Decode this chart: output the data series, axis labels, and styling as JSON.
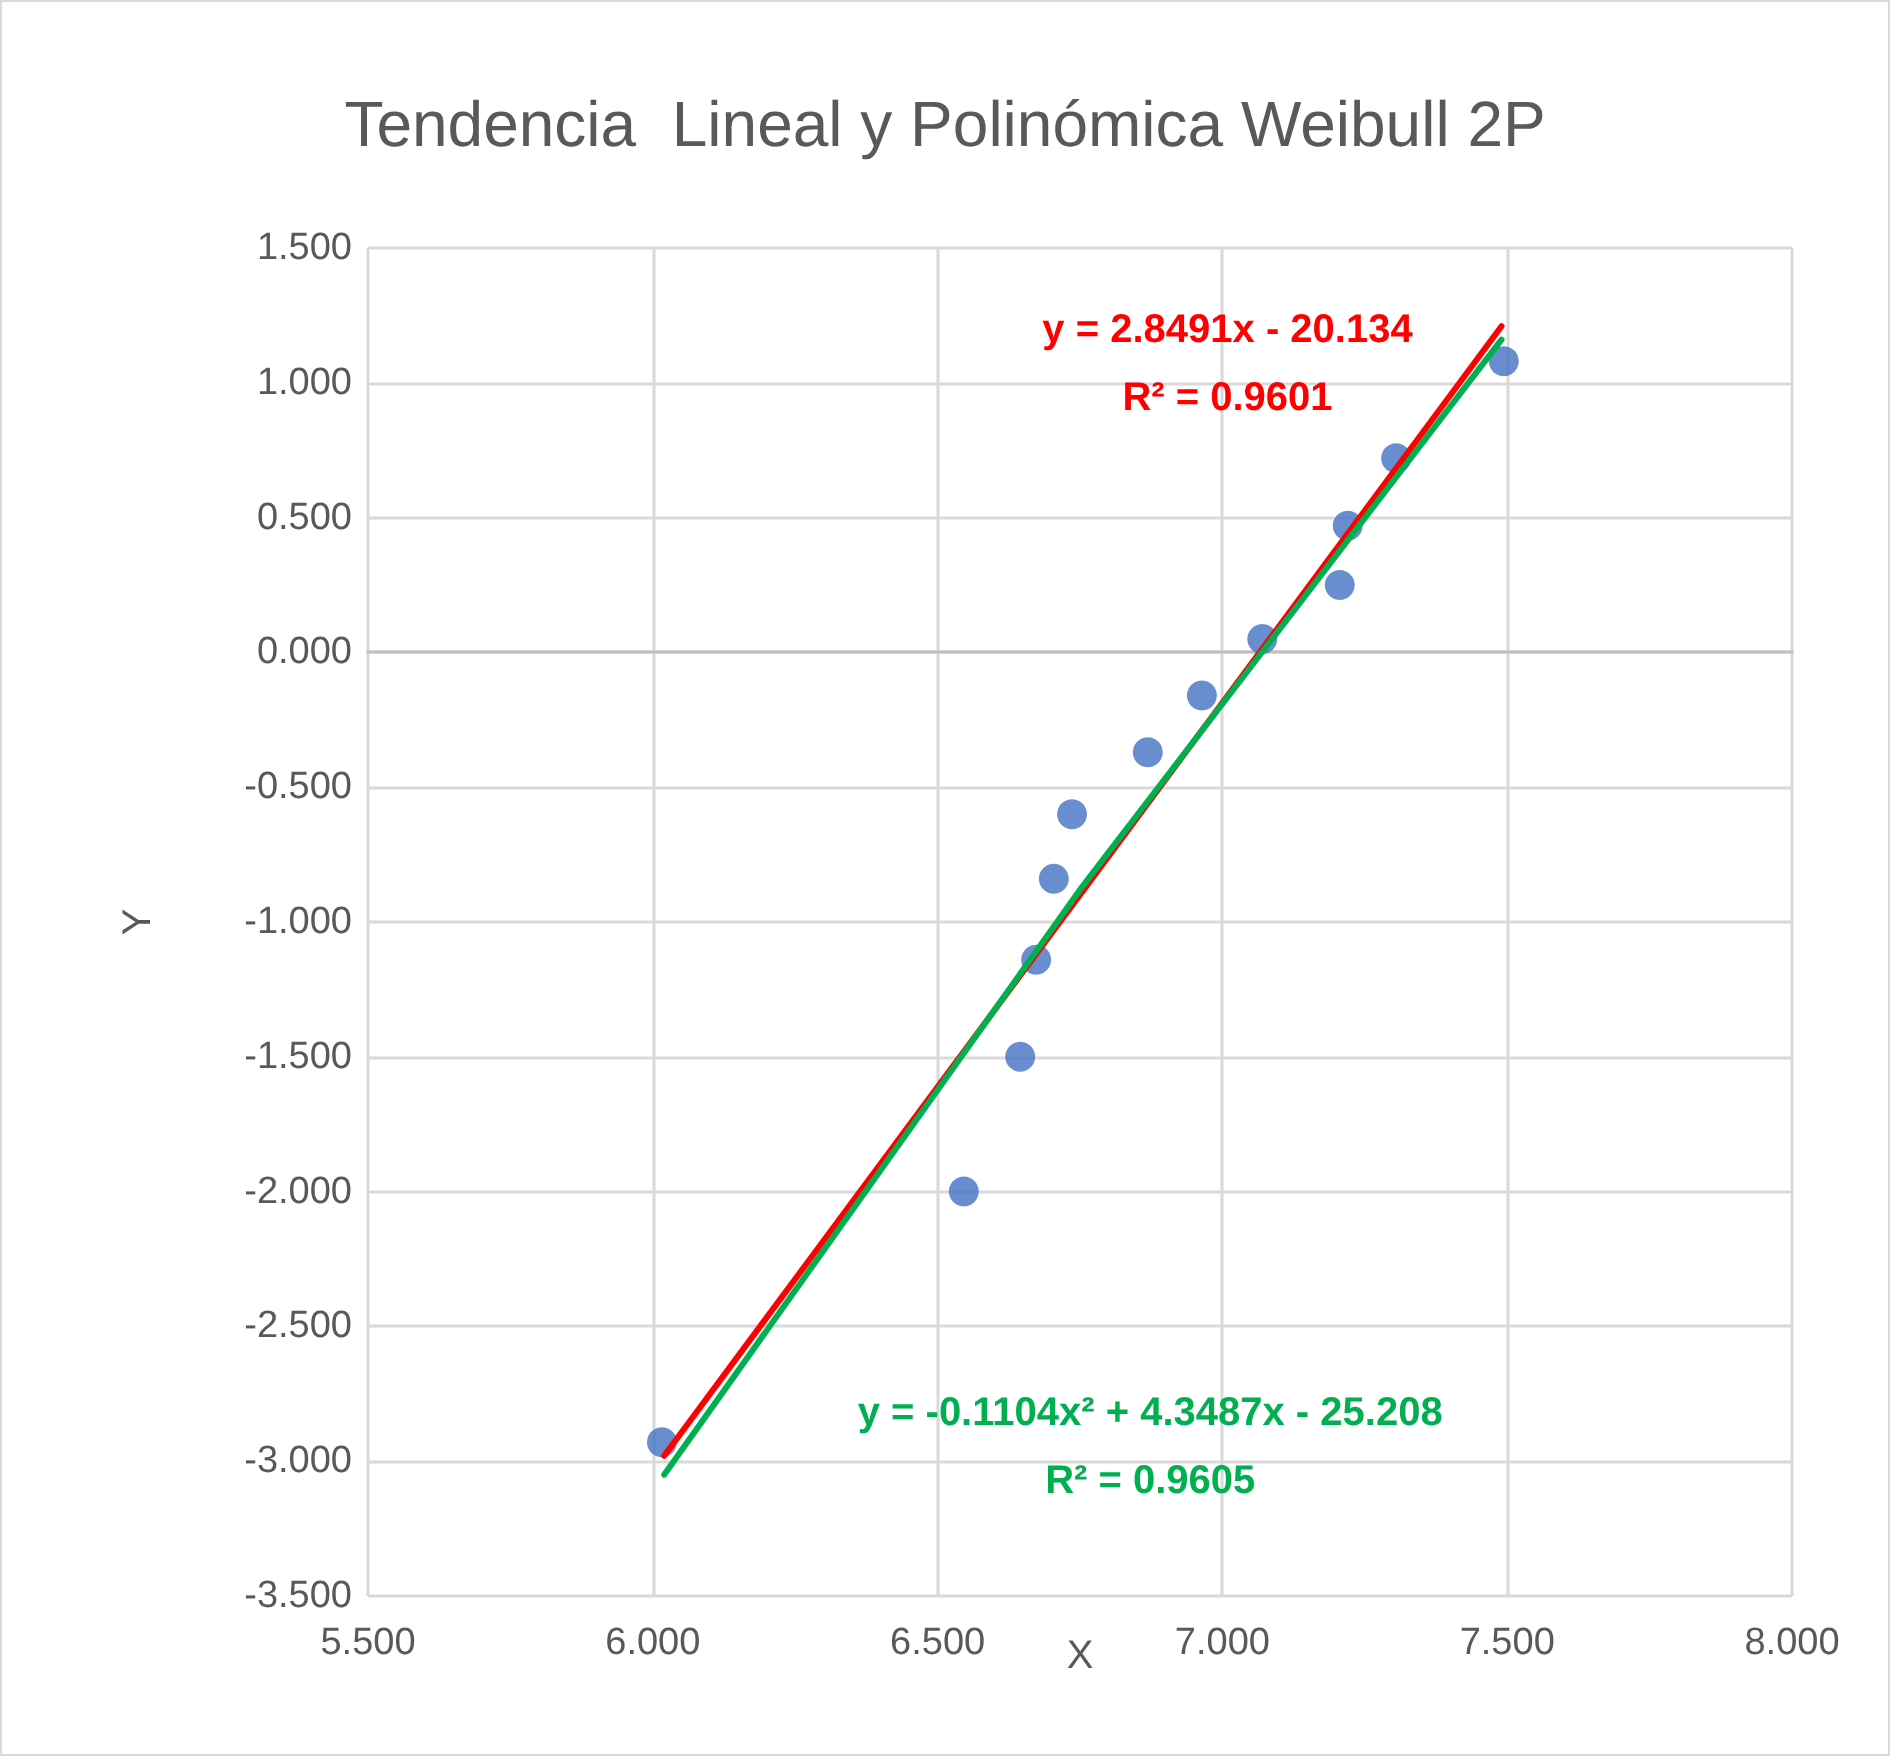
{
  "chart_data": {
    "type": "scatter",
    "title": "Tendencia  Lineal y Polinómica Weibull 2P",
    "xlabel": "X",
    "ylabel": "Y",
    "xlim": [
      5.5,
      8.0
    ],
    "ylim": [
      -3.5,
      1.5
    ],
    "xticks": [
      {
        "value": 5.5,
        "label": "5.500"
      },
      {
        "value": 6,
        "label": "6.000"
      },
      {
        "value": 6.5,
        "label": "6.500"
      },
      {
        "value": 7,
        "label": "7.000"
      },
      {
        "value": 7.5,
        "label": "7.500"
      },
      {
        "value": 8,
        "label": "8.000"
      }
    ],
    "yticks": [
      {
        "value": -3.5,
        "label": "-3.500"
      },
      {
        "value": -3,
        "label": "-3.000"
      },
      {
        "value": -2.5,
        "label": "-2.500"
      },
      {
        "value": -2,
        "label": "-2.000"
      },
      {
        "value": -1.5,
        "label": "-1.500"
      },
      {
        "value": -1,
        "label": "-1.000"
      },
      {
        "value": -0.5,
        "label": "-0.500"
      },
      {
        "value": 0,
        "label": "0.000"
      },
      {
        "value": 0.5,
        "label": "0.500"
      },
      {
        "value": 1,
        "label": "1.000"
      },
      {
        "value": 1.5,
        "label": "1.500"
      }
    ],
    "grid": true,
    "marker": "circle",
    "series": [
      {
        "color": "#4472c4",
        "x": [
          6.016,
          6.546,
          6.645,
          6.673,
          6.704,
          6.736,
          6.869,
          6.964,
          7.07,
          7.206,
          7.22,
          7.305,
          7.494
        ],
        "values": [
          -2.93,
          -2.0,
          -1.5,
          -1.14,
          -0.84,
          -0.6,
          -0.37,
          -0.16,
          0.05,
          0.25,
          0.47,
          0.72,
          1.08
        ]
      },
      {
        "type": "line",
        "marker": "none",
        "color": "#ff0000",
        "x": [
          6.02,
          7.49
        ],
        "values": [
          -2.98,
          1.21
        ]
      },
      {
        "type": "line",
        "marker": "none",
        "color": "#00b050",
        "x": [
          6.02,
          6.75,
          7.49
        ],
        "values": [
          -3.05,
          -0.88,
          1.16
        ]
      }
    ],
    "annotations": [
      "y = 2.8491x - 20.134\nR² = 0.9601",
      "y = -0.1104x² + 4.3487x - 25.208\nR² = 0.9605"
    ]
  }
}
